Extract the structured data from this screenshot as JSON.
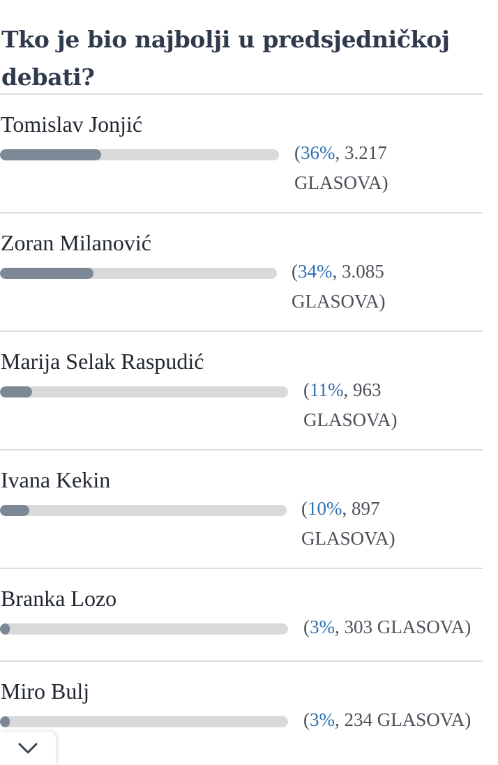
{
  "poll": {
    "title": "Tko je bio najbolji u predsjedničkoj debati?",
    "options": [
      {
        "name": "Tomislav Jonjić",
        "percent": 36,
        "percent_label": "36%",
        "votes_label": ", 3.217",
        "votes_unit": "GLASOVA)",
        "open_paren": "("
      },
      {
        "name": "Zoran Milanović",
        "percent": 34,
        "percent_label": "34%",
        "votes_label": ", 3.085",
        "votes_unit": "GLASOVA)",
        "open_paren": "("
      },
      {
        "name": "Marija Selak Raspudić",
        "percent": 11,
        "percent_label": "11%",
        "votes_label": ", 963",
        "votes_unit": "GLASOVA)",
        "open_paren": "("
      },
      {
        "name": "Ivana Kekin",
        "percent": 10,
        "percent_label": "10%",
        "votes_label": ", 897",
        "votes_unit": "GLASOVA)",
        "open_paren": "("
      },
      {
        "name": "Branka Lozo",
        "percent": 3,
        "percent_label": "3%",
        "votes_label": ", 303 GLASOVA)",
        "votes_unit": "",
        "open_paren": "("
      },
      {
        "name": "Miro Bulj",
        "percent": 3,
        "percent_label": "3%",
        "votes_label": ", 234 GLASOVA)",
        "votes_unit": "",
        "open_paren": "("
      }
    ]
  },
  "icons": {
    "collapse": "chevron-down-icon"
  },
  "colors": {
    "bar_fill": "#7d8896",
    "bar_track": "#d9d9d9",
    "percent_text": "#2f6fb2"
  }
}
